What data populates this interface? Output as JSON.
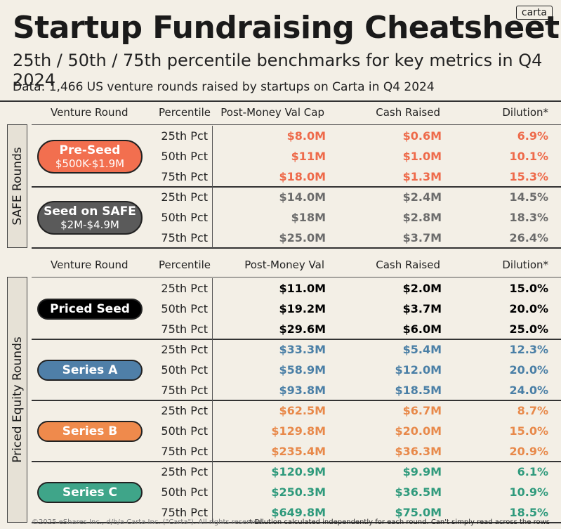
{
  "header": {
    "title": "Startup Fundraising Cheatsheet",
    "subtitle": "25th / 50th / 75th percentile benchmarks for key metrics in Q4 2024",
    "source": "Data: 1,466 US venture rounds raised by startups on Carta in Q4 2024",
    "logo": "carta"
  },
  "footer": {
    "copyright": "©2025 eShares Inc., d/b/a Carta Inc. (\"Carta\"). All rights reserved.",
    "note": "* Dilution calculated independently for each round. Can't simply read across the rows"
  },
  "colors": {
    "pre_seed": "#f26f4f",
    "seed_safe": "#5a5a5a",
    "priced_seed": "#000000",
    "series_a": "#4f7fa8",
    "series_b": "#ef8a4c",
    "series_c": "#3fa589",
    "pre_seed_text": "#ee6a4a",
    "seed_safe_text": "#6b6b6b",
    "series_a_text": "#4a7fa6",
    "series_b_text": "#e8894a",
    "series_c_text": "#2f9a7c"
  },
  "chart_data": {
    "type": "table",
    "sections": [
      {
        "label": "SAFE Rounds",
        "columns": [
          "Venture Round",
          "Percentile",
          "Post-Money Val Cap",
          "Cash Raised",
          "Dilution*"
        ],
        "rounds": [
          {
            "name": "Pre-Seed",
            "range": "$500K-$1.9M",
            "color_key": "pre_seed",
            "rows": [
              {
                "percentile": "25th Pct",
                "post": "$8.0M",
                "cash": "$0.6M",
                "dilution": "6.9%"
              },
              {
                "percentile": "50th Pct",
                "post": "$11M",
                "cash": "$1.0M",
                "dilution": "10.1%"
              },
              {
                "percentile": "75th Pct",
                "post": "$18.0M",
                "cash": "$1.3M",
                "dilution": "15.3%"
              }
            ]
          },
          {
            "name": "Seed on SAFE",
            "range": "$2M-$4.9M",
            "color_key": "seed_safe",
            "rows": [
              {
                "percentile": "25th Pct",
                "post": "$14.0M",
                "cash": "$2.4M",
                "dilution": "14.5%"
              },
              {
                "percentile": "50th Pct",
                "post": "$18M",
                "cash": "$2.8M",
                "dilution": "18.3%"
              },
              {
                "percentile": "75th Pct",
                "post": "$25.0M",
                "cash": "$3.7M",
                "dilution": "26.4%"
              }
            ]
          }
        ]
      },
      {
        "label": "Priced Equity Rounds",
        "columns": [
          "Venture Round",
          "Percentile",
          "Post-Money Val",
          "Cash Raised",
          "Dilution*"
        ],
        "rounds": [
          {
            "name": "Priced Seed",
            "range": "",
            "color_key": "priced_seed",
            "rows": [
              {
                "percentile": "25th Pct",
                "post": "$11.0M",
                "cash": "$2.0M",
                "dilution": "15.0%"
              },
              {
                "percentile": "50th Pct",
                "post": "$19.2M",
                "cash": "$3.7M",
                "dilution": "20.0%"
              },
              {
                "percentile": "75th Pct",
                "post": "$29.6M",
                "cash": "$6.0M",
                "dilution": "25.0%"
              }
            ]
          },
          {
            "name": "Series A",
            "range": "",
            "color_key": "series_a",
            "rows": [
              {
                "percentile": "25th Pct",
                "post": "$33.3M",
                "cash": "$5.4M",
                "dilution": "12.3%"
              },
              {
                "percentile": "50th Pct",
                "post": "$58.9M",
                "cash": "$12.0M",
                "dilution": "20.0%"
              },
              {
                "percentile": "75th Pct",
                "post": "$93.8M",
                "cash": "$18.5M",
                "dilution": "24.0%"
              }
            ]
          },
          {
            "name": "Series B",
            "range": "",
            "color_key": "series_b",
            "rows": [
              {
                "percentile": "25th Pct",
                "post": "$62.5M",
                "cash": "$6.7M",
                "dilution": "8.7%"
              },
              {
                "percentile": "50th Pct",
                "post": "$129.8M",
                "cash": "$20.0M",
                "dilution": "15.0%"
              },
              {
                "percentile": "75th Pct",
                "post": "$235.4M",
                "cash": "$36.3M",
                "dilution": "20.9%"
              }
            ]
          },
          {
            "name": "Series C",
            "range": "",
            "color_key": "series_c",
            "rows": [
              {
                "percentile": "25th Pct",
                "post": "$120.9M",
                "cash": "$9.9M",
                "dilution": "6.1%"
              },
              {
                "percentile": "50th Pct",
                "post": "$250.3M",
                "cash": "$36.5M",
                "dilution": "10.9%"
              },
              {
                "percentile": "75th Pct",
                "post": "$649.8M",
                "cash": "$75.0M",
                "dilution": "18.5%"
              }
            ]
          }
        ]
      }
    ]
  }
}
